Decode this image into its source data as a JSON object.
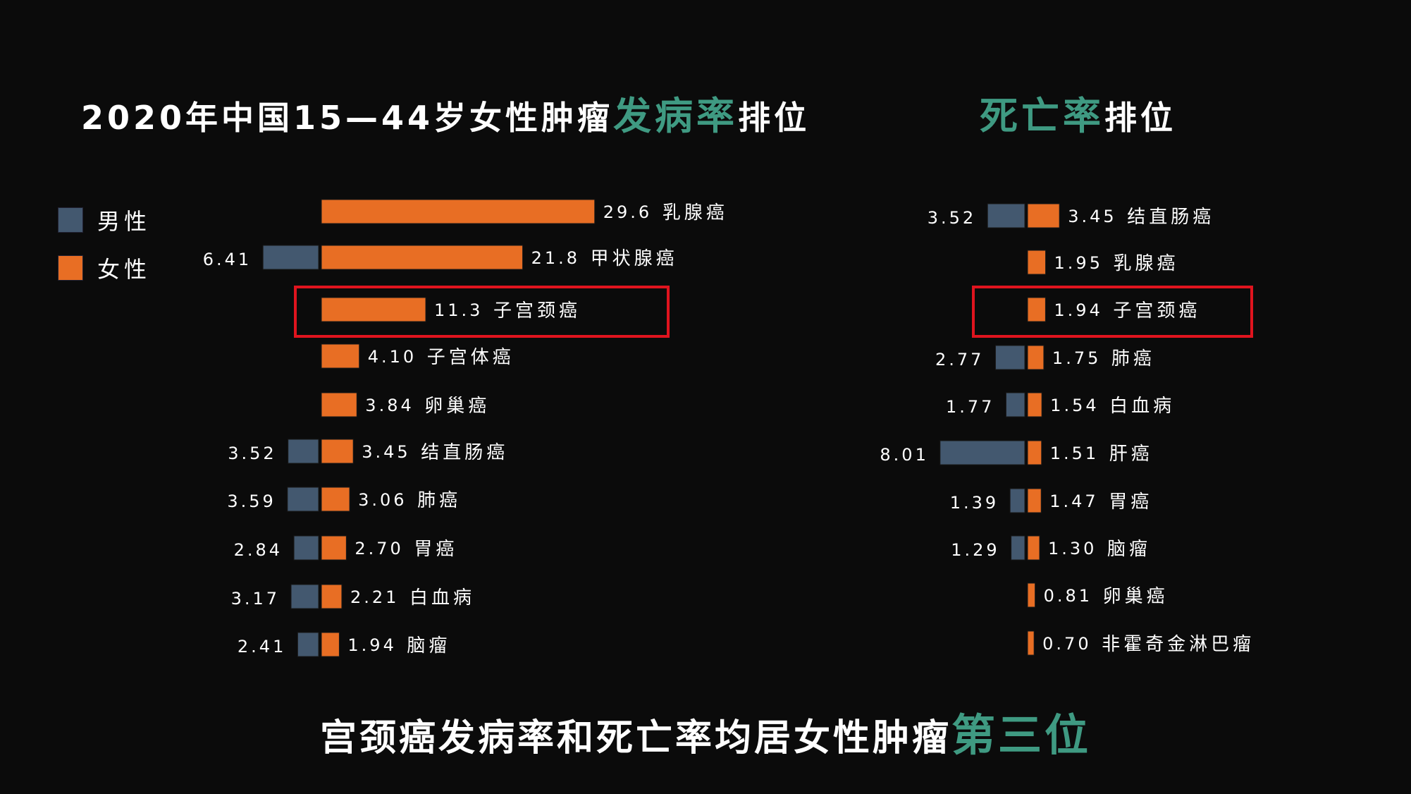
{
  "title_left": {
    "prefix": "2020年中国15—44岁女性肿瘤",
    "highlight": "发病率",
    "suffix": "排位"
  },
  "title_right": {
    "highlight": "死亡率",
    "suffix": "排位"
  },
  "footer": {
    "prefix": "宫颈癌发病率和死亡率均居女性肿瘤",
    "highlight": "第三位"
  },
  "legend": [
    {
      "label": "男性",
      "color": "#43586f"
    },
    {
      "label": "女性",
      "color": "#e86e24"
    }
  ],
  "colors": {
    "male": "#43586f",
    "female": "#e86e24",
    "highlight_text": "#3f9a82",
    "box": "#e0141e"
  },
  "chart_data": [
    {
      "type": "bar",
      "name": "incidence",
      "series": [
        {
          "name": "男性",
          "values": [
            null,
            6.41,
            null,
            null,
            null,
            3.52,
            3.59,
            2.84,
            3.17,
            2.41
          ]
        },
        {
          "name": "女性",
          "values": [
            29.6,
            21.8,
            11.3,
            4.1,
            3.84,
            3.45,
            3.06,
            2.7,
            2.21,
            1.94
          ]
        }
      ],
      "categories": [
        "乳腺癌",
        "甲状腺癌",
        "子宫颈癌",
        "子宫体癌",
        "卵巢癌",
        "结直肠癌",
        "肺癌",
        "胃癌",
        "白血病",
        "脑瘤"
      ],
      "male_labels": [
        "",
        "6.41",
        "",
        "",
        "",
        "3.52",
        "3.59",
        "2.84",
        "3.17",
        "2.41"
      ],
      "female_labels": [
        "29.6",
        "21.8",
        "11.3",
        "4.10",
        "3.84",
        "3.45",
        "3.06",
        "2.70",
        "2.21",
        "1.94"
      ],
      "highlighted_category": "子宫颈癌"
    },
    {
      "type": "bar",
      "name": "mortality",
      "series": [
        {
          "name": "男性",
          "values": [
            3.52,
            null,
            null,
            2.77,
            1.77,
            8.01,
            1.39,
            1.29,
            null,
            null
          ]
        },
        {
          "name": "女性",
          "values": [
            3.45,
            1.95,
            1.94,
            1.75,
            1.54,
            1.51,
            1.47,
            1.3,
            0.81,
            0.7
          ]
        }
      ],
      "categories": [
        "结直肠癌",
        "乳腺癌",
        "子宫颈癌",
        "肺癌",
        "白血病",
        "肝癌",
        "胃癌",
        "脑瘤",
        "卵巢癌",
        "非霍奇金淋巴瘤"
      ],
      "male_labels": [
        "3.52",
        "",
        "",
        "2.77",
        "1.77",
        "8.01",
        "1.39",
        "1.29",
        "",
        ""
      ],
      "female_labels": [
        "3.45",
        "1.95",
        "1.94",
        "1.75",
        "1.54",
        "1.51",
        "1.47",
        "1.30",
        "0.81",
        "0.70"
      ],
      "highlighted_category": "子宫颈癌"
    }
  ]
}
